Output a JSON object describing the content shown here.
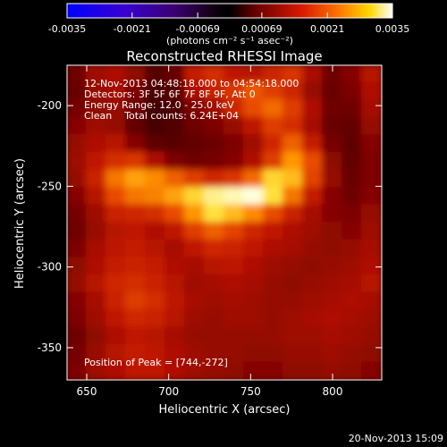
{
  "chart_data": {
    "type": "heatmap",
    "title": "Reconstructed RHESSI Image",
    "xlabel": "Heliocentric X (arcsec)",
    "ylabel": "Heliocentric Y (arcsec)",
    "xlim": [
      638,
      830
    ],
    "ylim": [
      -370,
      -175
    ],
    "x_ticks": [
      650,
      700,
      750,
      800
    ],
    "y_ticks": [
      -200,
      -250,
      -300,
      -350
    ],
    "colorbar": {
      "colormap": "rainbow-blue-black-red-yellow-white",
      "range": [
        -0.0035,
        0.0035
      ],
      "ticks": [
        "-0.0035",
        "-0.0021",
        "-0.00069",
        "0.00069",
        "0.0021",
        "0.0035"
      ],
      "unit_label": "(photons cm⁻² s⁻¹ asec⁻²)"
    },
    "annotations": {
      "time_range": "12-Nov-2013 04:48:18.000 to 04:54:18.000",
      "detectors": "Detectors: 3F 5F 6F 7F 8F 9F, Att 0",
      "energy_range": "Energy Range: 12.0 - 25.0 keV",
      "method_counts": "Clean    Total counts: 6.24E+04",
      "peak": "Position of Peak = [744,-272]"
    },
    "peak": [
      744,
      -272
    ],
    "image_values_relative": [
      [
        0.3,
        0.42,
        0.46,
        0.38,
        0.22,
        0.28,
        0.52,
        0.58,
        0.5,
        0.48,
        0.55,
        0.6,
        0.45,
        0.3,
        0.36,
        0.48
      ],
      [
        0.28,
        0.4,
        0.44,
        0.34,
        0.18,
        0.22,
        0.46,
        0.54,
        0.6,
        0.68,
        0.62,
        0.55,
        0.4,
        0.28,
        0.34,
        0.46
      ],
      [
        0.32,
        0.38,
        0.4,
        0.3,
        0.14,
        0.18,
        0.34,
        0.42,
        0.55,
        0.66,
        0.72,
        0.62,
        0.46,
        0.3,
        0.3,
        0.44
      ],
      [
        0.36,
        0.42,
        0.4,
        0.26,
        0.16,
        0.2,
        0.3,
        0.34,
        0.4,
        0.5,
        0.62,
        0.58,
        0.44,
        0.28,
        0.26,
        0.4
      ],
      [
        0.4,
        0.46,
        0.48,
        0.36,
        0.24,
        0.22,
        0.26,
        0.3,
        0.34,
        0.42,
        0.56,
        0.7,
        0.52,
        0.32,
        0.24,
        0.36
      ],
      [
        0.42,
        0.5,
        0.58,
        0.6,
        0.46,
        0.34,
        0.3,
        0.32,
        0.36,
        0.46,
        0.62,
        0.8,
        0.66,
        0.38,
        0.26,
        0.34
      ],
      [
        0.4,
        0.54,
        0.74,
        0.82,
        0.78,
        0.7,
        0.62,
        0.56,
        0.6,
        0.72,
        0.9,
        0.86,
        0.64,
        0.4,
        0.28,
        0.34
      ],
      [
        0.36,
        0.48,
        0.66,
        0.74,
        0.76,
        0.82,
        0.9,
        0.96,
        0.98,
        1.0,
        0.92,
        0.74,
        0.52,
        0.36,
        0.3,
        0.36
      ],
      [
        0.32,
        0.42,
        0.54,
        0.56,
        0.58,
        0.66,
        0.8,
        0.92,
        0.86,
        0.78,
        0.66,
        0.54,
        0.44,
        0.36,
        0.34,
        0.4
      ],
      [
        0.3,
        0.4,
        0.48,
        0.5,
        0.46,
        0.5,
        0.62,
        0.7,
        0.64,
        0.56,
        0.5,
        0.46,
        0.42,
        0.38,
        0.36,
        0.42
      ],
      [
        0.34,
        0.44,
        0.5,
        0.52,
        0.48,
        0.44,
        0.5,
        0.56,
        0.54,
        0.5,
        0.46,
        0.44,
        0.4,
        0.38,
        0.4,
        0.44
      ],
      [
        0.38,
        0.46,
        0.52,
        0.54,
        0.52,
        0.46,
        0.44,
        0.48,
        0.5,
        0.46,
        0.42,
        0.4,
        0.38,
        0.4,
        0.42,
        0.46
      ],
      [
        0.4,
        0.48,
        0.56,
        0.58,
        0.54,
        0.48,
        0.42,
        0.44,
        0.46,
        0.44,
        0.4,
        0.38,
        0.4,
        0.42,
        0.44,
        0.48
      ],
      [
        0.36,
        0.44,
        0.54,
        0.62,
        0.58,
        0.5,
        0.44,
        0.42,
        0.44,
        0.42,
        0.4,
        0.4,
        0.42,
        0.44,
        0.46,
        0.44
      ],
      [
        0.34,
        0.42,
        0.5,
        0.56,
        0.54,
        0.48,
        0.42,
        0.4,
        0.42,
        0.42,
        0.4,
        0.42,
        0.44,
        0.46,
        0.44,
        0.42
      ],
      [
        0.3,
        0.38,
        0.46,
        0.5,
        0.48,
        0.44,
        0.4,
        0.4,
        0.4,
        0.4,
        0.4,
        0.42,
        0.42,
        0.44,
        0.42,
        0.4
      ],
      [
        0.32,
        0.4,
        0.48,
        0.52,
        0.5,
        0.46,
        0.42,
        0.4,
        0.4,
        0.38,
        0.38,
        0.4,
        0.4,
        0.42,
        0.4,
        0.38
      ],
      [
        0.34,
        0.42,
        0.46,
        0.5,
        0.5,
        0.46,
        0.42,
        0.4,
        0.38,
        0.36,
        0.36,
        0.38,
        0.38,
        0.4,
        0.38,
        0.36
      ]
    ]
  },
  "footer": {
    "timestamp": "20-Nov-2013 15:09"
  }
}
